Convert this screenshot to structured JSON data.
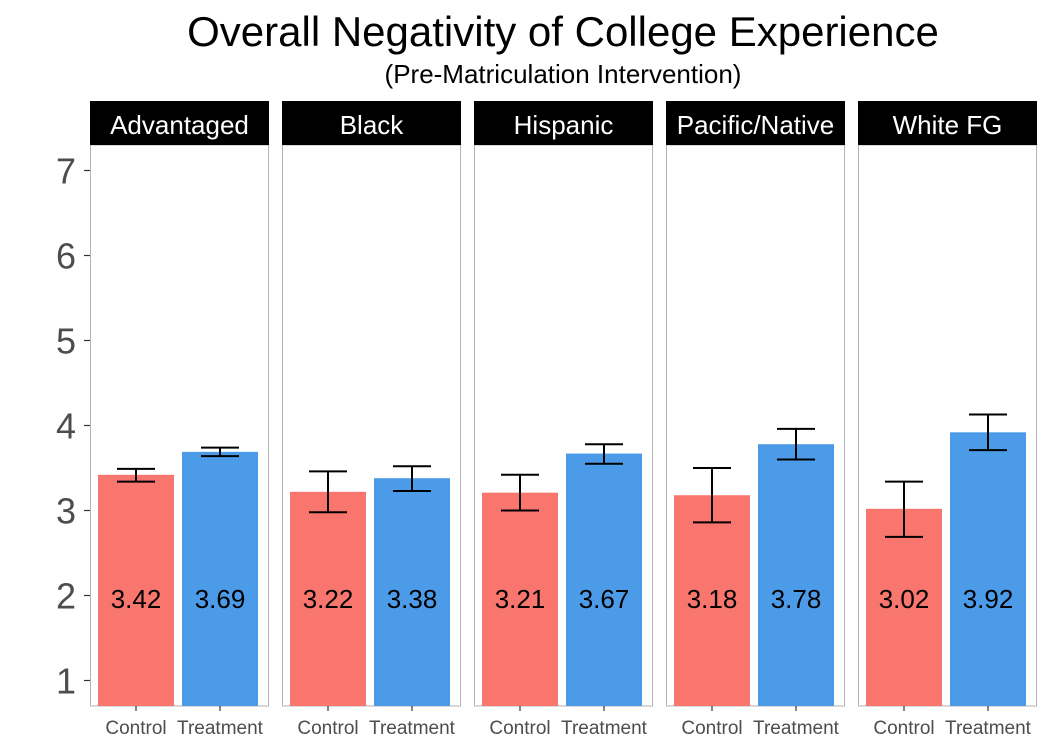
{
  "chart_data": {
    "type": "bar",
    "title": "Overall Negativity of College Experience",
    "subtitle": "(Pre-Matriculation Intervention)",
    "xlabel": "",
    "ylabel": "",
    "ylim": [
      0.7,
      7.3
    ],
    "yticks": [
      1,
      2,
      3,
      4,
      5,
      6,
      7
    ],
    "categories": [
      "Control",
      "Treatment"
    ],
    "colors": {
      "Control": "#F8766D",
      "Treatment": "#4C9BE8"
    },
    "grid": false,
    "facets": [
      {
        "label": "Advantaged",
        "bars": [
          {
            "group": "Control",
            "value": 3.42,
            "label": "3.42",
            "err_low": 3.34,
            "err_high": 3.49
          },
          {
            "group": "Treatment",
            "value": 3.69,
            "label": "3.69",
            "err_low": 3.64,
            "err_high": 3.74
          }
        ]
      },
      {
        "label": "Black",
        "bars": [
          {
            "group": "Control",
            "value": 3.22,
            "label": "3.22",
            "err_low": 2.98,
            "err_high": 3.46
          },
          {
            "group": "Treatment",
            "value": 3.38,
            "label": "3.38",
            "err_low": 3.23,
            "err_high": 3.52
          }
        ]
      },
      {
        "label": "Hispanic",
        "bars": [
          {
            "group": "Control",
            "value": 3.21,
            "label": "3.21",
            "err_low": 3.0,
            "err_high": 3.42
          },
          {
            "group": "Treatment",
            "value": 3.67,
            "label": "3.67",
            "err_low": 3.55,
            "err_high": 3.78
          }
        ]
      },
      {
        "label": "Pacific/Native",
        "bars": [
          {
            "group": "Control",
            "value": 3.18,
            "label": "3.18",
            "err_low": 2.86,
            "err_high": 3.5
          },
          {
            "group": "Treatment",
            "value": 3.78,
            "label": "3.78",
            "err_low": 3.6,
            "err_high": 3.96
          }
        ]
      },
      {
        "label": "White FG",
        "bars": [
          {
            "group": "Control",
            "value": 3.02,
            "label": "3.02",
            "err_low": 2.69,
            "err_high": 3.34
          },
          {
            "group": "Treatment",
            "value": 3.92,
            "label": "3.92",
            "err_low": 3.71,
            "err_high": 4.13
          }
        ]
      }
    ]
  }
}
